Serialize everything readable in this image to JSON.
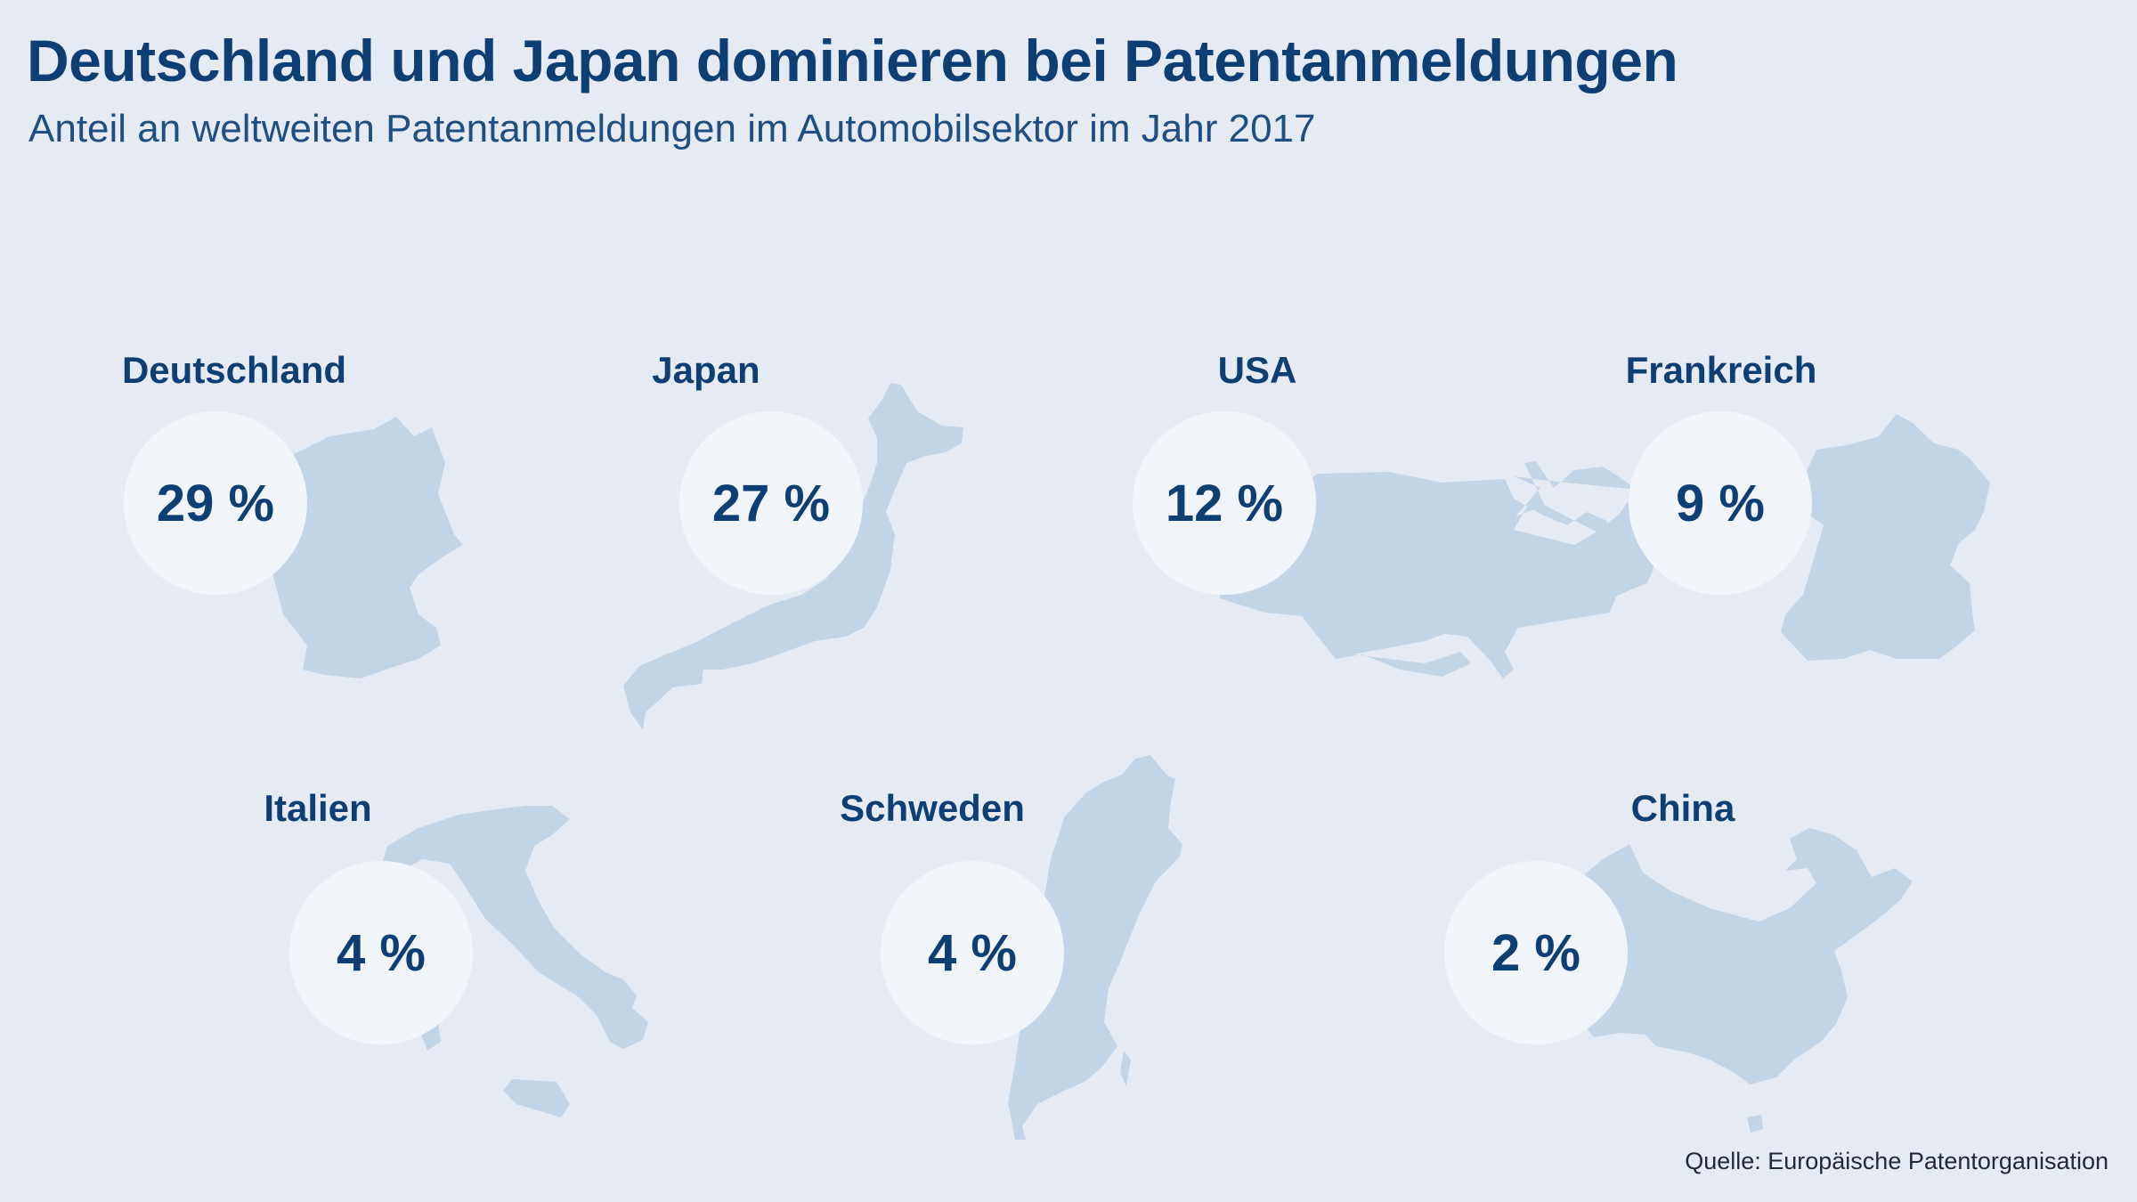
{
  "title": "Deutschland und Japan dominieren bei Patentanmeldungen",
  "subtitle": "Anteil an weltweiten Patentanmeldungen im Automobilsektor im Jahr 2017",
  "source": "Quelle: Europäische Patentorganisation",
  "colors": {
    "background": "#e6ebf3",
    "map": "#c3d4e6",
    "circle": "#f1f4f8",
    "text": "#0d3f74"
  },
  "chart_data": {
    "type": "table",
    "unit": "%",
    "categories": [
      "Deutschland",
      "Japan",
      "USA",
      "Frankreich",
      "Italien",
      "Schweden",
      "China"
    ],
    "values": [
      29,
      27,
      12,
      9,
      4,
      4,
      2
    ],
    "labels": [
      "29 %",
      "27 %",
      "12 %",
      "9 %",
      "4 %",
      "4 %",
      "2 %"
    ]
  }
}
